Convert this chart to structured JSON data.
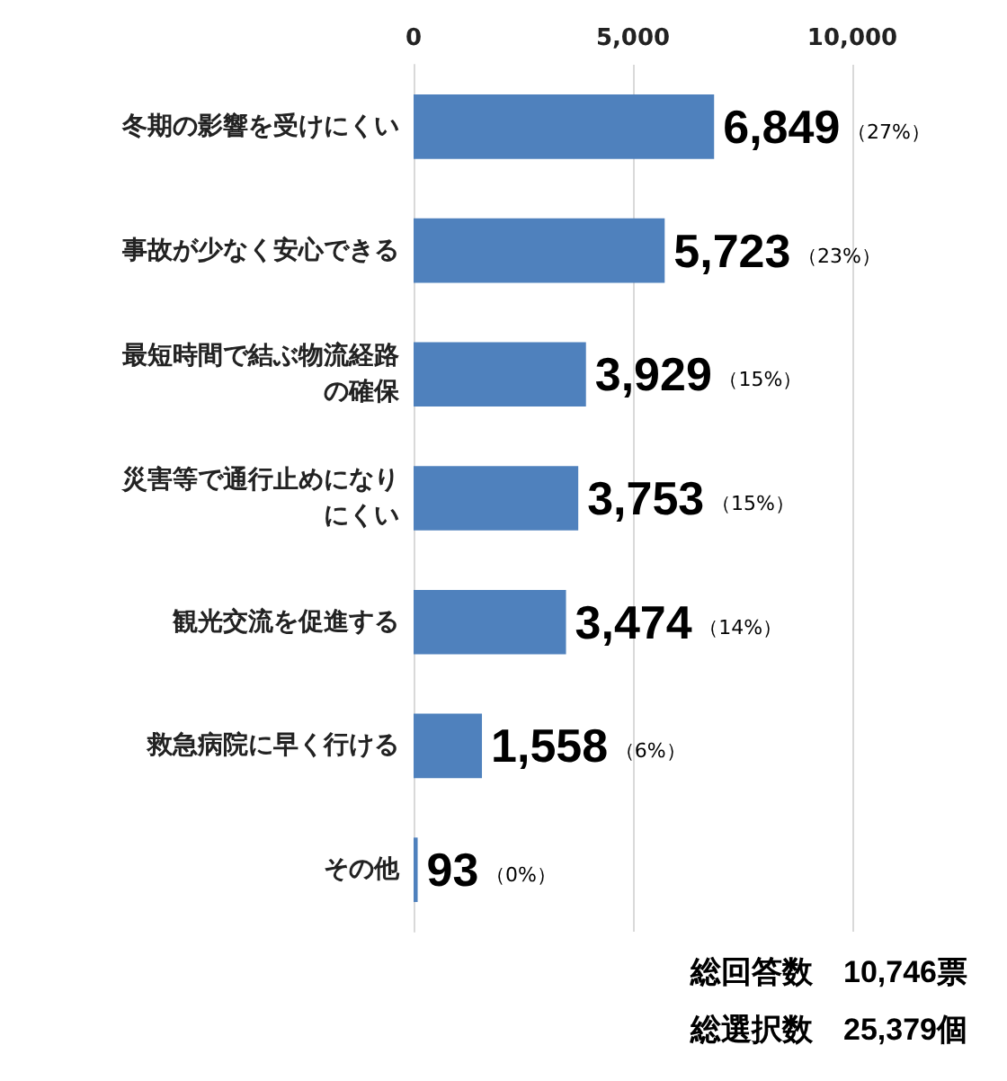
{
  "chart_data": {
    "type": "bar",
    "orientation": "horizontal",
    "categories": [
      "冬期の影響を受けにくい",
      "事故が少なく安心できる",
      "最短時間で結ぶ物流経路の確保",
      "災害等で通行止めになりにくい",
      "観光交流を促進する",
      "救急病院に早く行ける",
      "その他"
    ],
    "values": [
      6849,
      5723,
      3929,
      3753,
      3474,
      1558,
      93
    ],
    "value_labels": [
      "6,849",
      "5,723",
      "3,929",
      "3,753",
      "3,474",
      "1,558",
      "93"
    ],
    "color": "#4f81bd",
    "xlim": [
      0,
      10000
    ],
    "xticks": [
      0,
      {
        "value": 5000,
        "label": "5,000"
      },
      {
        "value": 10000,
        "label": "10,000"
      }
    ],
    "grid": "x",
    "annotations": [
      "（27%）",
      "（23%）",
      "（15%）",
      "（15%）",
      "（14%）",
      "（6%）",
      "（0%）",
      "総回答数　10,746票",
      "総選択数　25,379個"
    ]
  }
}
